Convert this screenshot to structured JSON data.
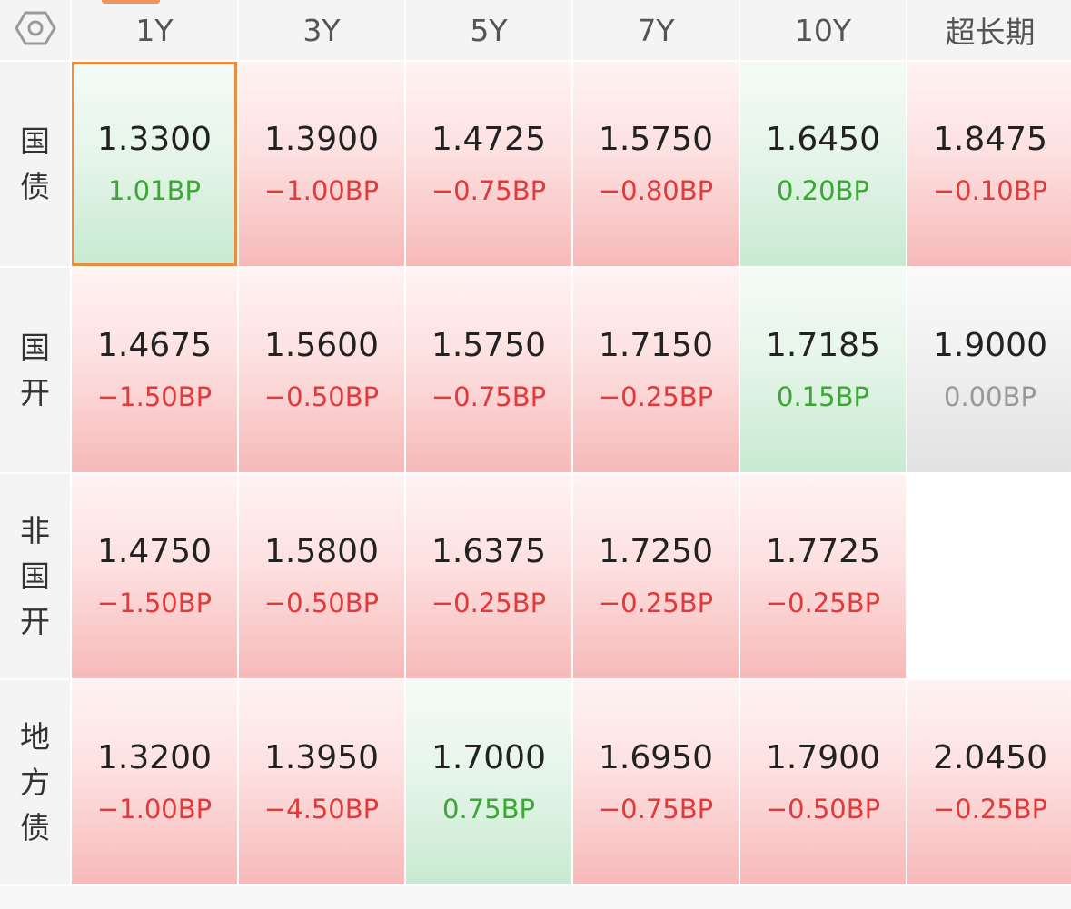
{
  "header": {
    "settings_icon": "hexagon-gear-icon",
    "tenors": [
      "1Y",
      "3Y",
      "5Y",
      "7Y",
      "10Y",
      "超长期"
    ]
  },
  "colors": {
    "up_red": "#e2393a",
    "down_green": "#3aa832",
    "flat_gray": "#999999",
    "selected_border": "#f08a3c"
  },
  "rows": [
    {
      "label": [
        "国",
        "债"
      ],
      "cells": [
        {
          "value": "1.3300",
          "change": "1.01BP",
          "tone": "green",
          "selected": true
        },
        {
          "value": "1.3900",
          "change": "−1.00BP",
          "tone": "red"
        },
        {
          "value": "1.4725",
          "change": "−0.75BP",
          "tone": "red"
        },
        {
          "value": "1.5750",
          "change": "−0.80BP",
          "tone": "red"
        },
        {
          "value": "1.6450",
          "change": "0.20BP",
          "tone": "green"
        },
        {
          "value": "1.8475",
          "change": "−0.10BP",
          "tone": "red"
        }
      ]
    },
    {
      "label": [
        "国",
        "开"
      ],
      "cells": [
        {
          "value": "1.4675",
          "change": "−1.50BP",
          "tone": "red"
        },
        {
          "value": "1.5600",
          "change": "−0.50BP",
          "tone": "red"
        },
        {
          "value": "1.5750",
          "change": "−0.75BP",
          "tone": "red"
        },
        {
          "value": "1.7150",
          "change": "−0.25BP",
          "tone": "red"
        },
        {
          "value": "1.7185",
          "change": "0.15BP",
          "tone": "green"
        },
        {
          "value": "1.9000",
          "change": "0.00BP",
          "tone": "gray"
        }
      ]
    },
    {
      "label": [
        "非",
        "国",
        "开"
      ],
      "cells": [
        {
          "value": "1.4750",
          "change": "−1.50BP",
          "tone": "red"
        },
        {
          "value": "1.5800",
          "change": "−0.50BP",
          "tone": "red"
        },
        {
          "value": "1.6375",
          "change": "−0.25BP",
          "tone": "red"
        },
        {
          "value": "1.7250",
          "change": "−0.25BP",
          "tone": "red"
        },
        {
          "value": "1.7725",
          "change": "−0.25BP",
          "tone": "red"
        },
        {
          "value": "",
          "change": "",
          "tone": "blank"
        }
      ]
    },
    {
      "label": [
        "地",
        "方",
        "债"
      ],
      "cells": [
        {
          "value": "1.3200",
          "change": "−1.00BP",
          "tone": "red"
        },
        {
          "value": "1.3950",
          "change": "−4.50BP",
          "tone": "red"
        },
        {
          "value": "1.7000",
          "change": "0.75BP",
          "tone": "green"
        },
        {
          "value": "1.6950",
          "change": "−0.75BP",
          "tone": "red"
        },
        {
          "value": "1.7900",
          "change": "−0.50BP",
          "tone": "red"
        },
        {
          "value": "2.0450",
          "change": "−0.25BP",
          "tone": "red"
        }
      ]
    }
  ]
}
